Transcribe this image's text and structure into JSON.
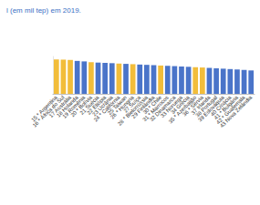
{
  "chart_data": {
    "type": "bar",
    "title": "l (em mil tep) em 2019.",
    "categories": [
      "15 * Argentina",
      "16 * África do Sul",
      "17 Austrália",
      "18 Holanda",
      "19 Romênia",
      "20 * Bolívia",
      "21 Suécia",
      "22 Etiópia",
      "23 Ucrânia",
      "24 * Califórnia",
      "25 Taiwan",
      "26 * Hungria",
      "27 Suíça",
      "28 * Bielorrússia",
      "29 Finlândia",
      "30 * Chile",
      "31 * Marrocos",
      "32 Dinamarca",
      "33 Noruega",
      "34 Grécia",
      "35 * Azerbaijão",
      "36 * Sérvia",
      "37 Irlanda",
      "38 Portugal",
      "39 Eslováquia",
      "40 Croácia",
      "41 * Bulgária",
      "42 * Guatemala",
      "43 Nova Zelândia"
    ],
    "values": [
      35000,
      34800,
      34500,
      33500,
      33000,
      32200,
      31800,
      31500,
      31200,
      30800,
      30500,
      30200,
      29800,
      29500,
      29200,
      28800,
      28500,
      28200,
      27800,
      27500,
      27100,
      26800,
      26400,
      26000,
      25600,
      25200,
      24800,
      24300,
      23800
    ],
    "colors": [
      "#f2bd3a",
      "#f2bd3a",
      "#f2bd3a",
      "#4a74c9",
      "#4a74c9",
      "#f2bd3a",
      "#4a74c9",
      "#4a74c9",
      "#4a74c9",
      "#f2bd3a",
      "#4a74c9",
      "#f2bd3a",
      "#4a74c9",
      "#4a74c9",
      "#4a74c9",
      "#f2bd3a",
      "#4a74c9",
      "#4a74c9",
      "#4a74c9",
      "#4a74c9",
      "#f2bd3a",
      "#f2bd3a",
      "#4a74c9",
      "#4a74c9",
      "#4a74c9",
      "#4a74c9",
      "#4a74c9",
      "#4a74c9",
      "#4a74c9"
    ],
    "ylim": [
      0,
      38000
    ],
    "yticks": [
      0,
      38000
    ],
    "grid": false,
    "tick_labels": "x"
  }
}
